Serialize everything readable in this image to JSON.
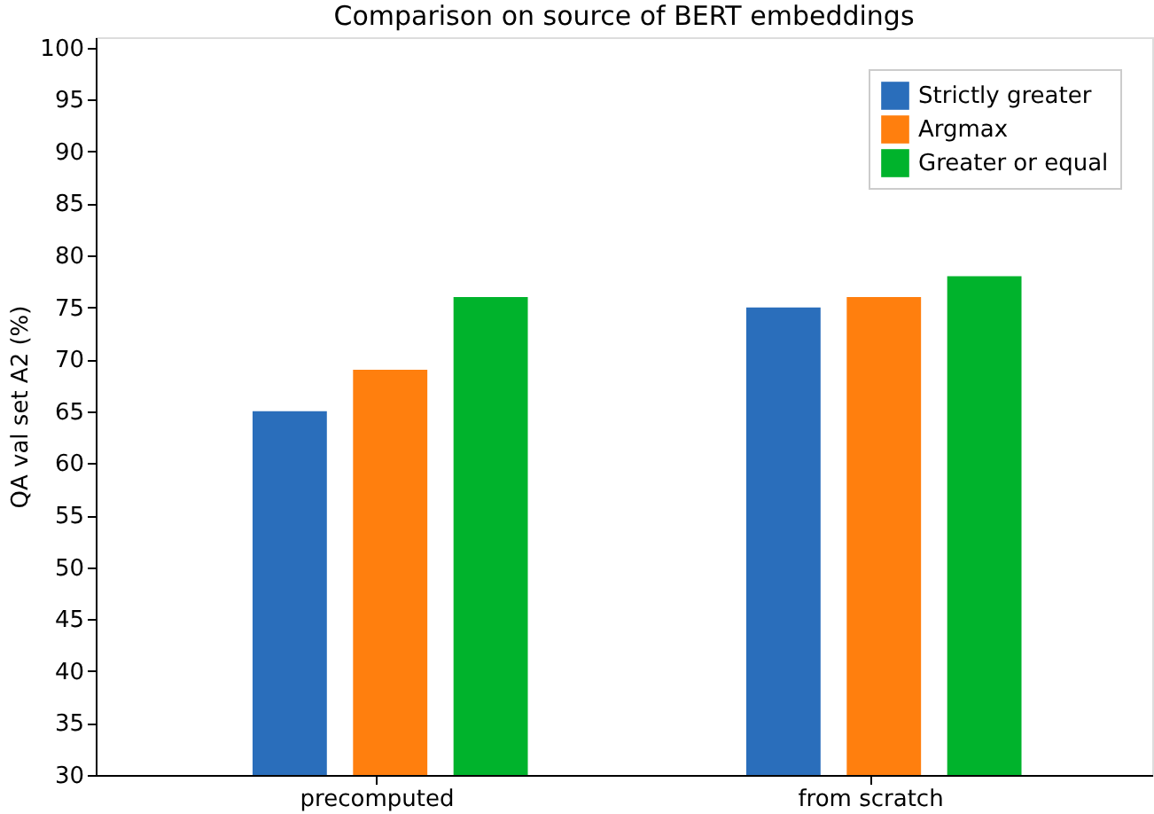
{
  "chart_data": {
    "type": "bar",
    "title": "Comparison on source of BERT embeddings",
    "ylabel": "QA val set A2 (%)",
    "categories": [
      "precomputed",
      "from scratch"
    ],
    "series": [
      {
        "name": "Strictly greater",
        "color": "#2a6ebb",
        "values": [
          65,
          75
        ]
      },
      {
        "name": "Argmax",
        "color": "#ff7f0e",
        "values": [
          69,
          76
        ]
      },
      {
        "name": "Greater or equal",
        "color": "#00b32c",
        "values": [
          76,
          78
        ]
      }
    ],
    "ylim": [
      30,
      101
    ],
    "yticks": [
      30,
      35,
      40,
      45,
      50,
      55,
      60,
      65,
      70,
      75,
      80,
      85,
      90,
      95,
      100
    ],
    "grid": false,
    "legend": "top right"
  }
}
